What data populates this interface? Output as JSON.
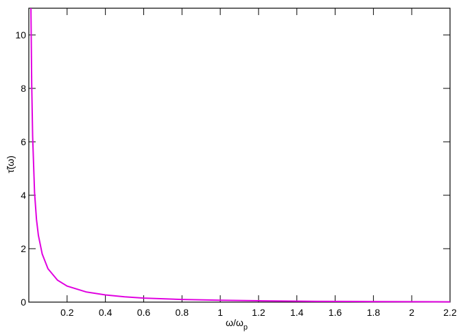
{
  "chart_data": {
    "type": "line",
    "xlabel": "ω/ω",
    "xlabel_subscript": "p",
    "ylabel": "τ̃(ω)",
    "x": [
      0.011,
      0.015,
      0.02,
      0.03,
      0.04,
      0.05,
      0.07,
      0.1,
      0.15,
      0.2,
      0.3,
      0.4,
      0.5,
      0.6,
      0.8,
      1.0,
      1.2,
      1.5,
      1.8,
      2.2
    ],
    "values": [
      11,
      8.2,
      6.2,
      4.1,
      3.1,
      2.5,
      1.8,
      1.25,
      0.82,
      0.6,
      0.38,
      0.27,
      0.2,
      0.15,
      0.1,
      0.07,
      0.05,
      0.03,
      0.02,
      0.01
    ],
    "color": "#e000e0",
    "xlim": [
      0,
      2.2
    ],
    "ylim": [
      0,
      11
    ],
    "xticks": [
      0.2,
      0.4,
      0.6,
      0.8,
      1,
      1.2,
      1.4,
      1.6,
      1.8,
      2,
      2.2
    ],
    "yticks": [
      0,
      2,
      4,
      6,
      8,
      10
    ]
  }
}
